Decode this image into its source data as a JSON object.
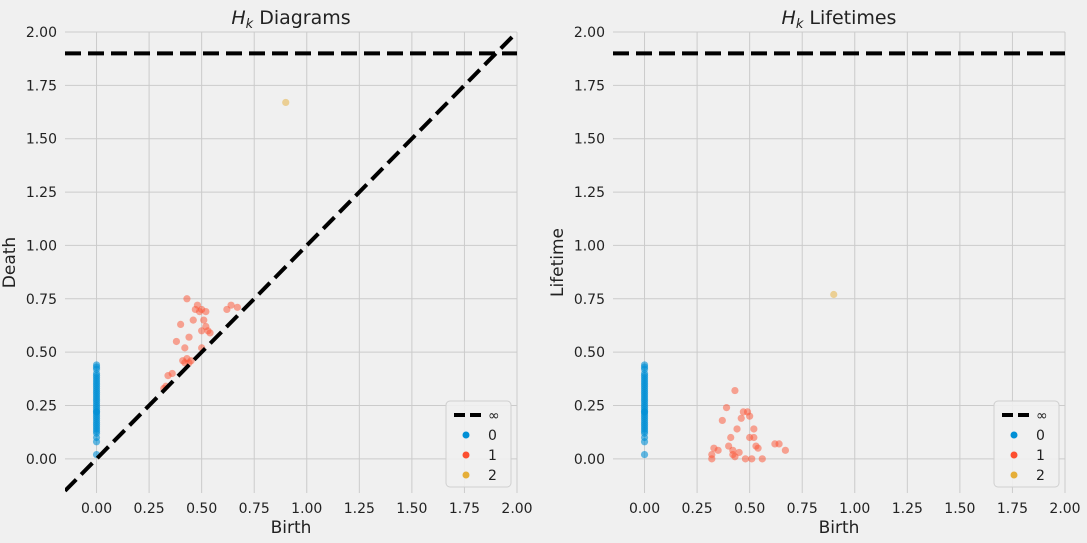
{
  "chart_data": [
    {
      "type": "scatter",
      "title_symbol": "H",
      "title_subscript": "k",
      "title_text": "Diagrams",
      "xlabel": "Birth",
      "ylabel": "Death",
      "xlim": [
        -0.15,
        2.0
      ],
      "ylim": [
        -0.16,
        2.0
      ],
      "xticks": [
        0.0,
        0.25,
        0.5,
        0.75,
        1.0,
        1.25,
        1.5,
        1.75,
        2.0
      ],
      "xtick_labels": [
        "0.00",
        "0.25",
        "0.50",
        "0.75",
        "1.00",
        "1.25",
        "1.50",
        "1.75",
        "2.00"
      ],
      "yticks": [
        0.0,
        0.25,
        0.5,
        0.75,
        1.0,
        1.25,
        1.5,
        1.75,
        2.0
      ],
      "ytick_labels": [
        "0.00",
        "0.25",
        "0.50",
        "0.75",
        "1.00",
        "1.25",
        "1.50",
        "1.75",
        "2.00"
      ],
      "grid": true,
      "infinity_line": 1.9,
      "diagonal": true,
      "legend_position": "bottom-right",
      "legend": [
        {
          "label": "∞",
          "kind": "dashed-line",
          "color": "#000000"
        },
        {
          "label": "0",
          "kind": "dot",
          "color": "#008fd5"
        },
        {
          "label": "1",
          "kind": "dot",
          "color": "#fc4f30"
        },
        {
          "label": "2",
          "kind": "dot",
          "color": "#e5ae38"
        }
      ],
      "series": [
        {
          "name": "0",
          "color": "#008fd5",
          "x": [
            0,
            0,
            0,
            0,
            0,
            0,
            0,
            0,
            0,
            0,
            0,
            0,
            0,
            0,
            0,
            0,
            0,
            0,
            0,
            0,
            0,
            0,
            0,
            0,
            0,
            0,
            0,
            0,
            0,
            0,
            0,
            0,
            0,
            0,
            0,
            0
          ],
          "y": [
            0.02,
            0.08,
            0.1,
            0.12,
            0.14,
            0.15,
            0.17,
            0.18,
            0.19,
            0.2,
            0.21,
            0.22,
            0.23,
            0.24,
            0.25,
            0.26,
            0.27,
            0.28,
            0.29,
            0.3,
            0.31,
            0.32,
            0.33,
            0.34,
            0.35,
            0.36,
            0.37,
            0.38,
            0.39,
            0.4,
            0.42,
            0.43,
            0.44,
            0.13,
            0.16,
            0.22
          ]
        },
        {
          "name": "1",
          "color": "#fc4f30",
          "x": [
            0.32,
            0.33,
            0.34,
            0.36,
            0.38,
            0.4,
            0.41,
            0.42,
            0.43,
            0.43,
            0.44,
            0.45,
            0.46,
            0.47,
            0.48,
            0.49,
            0.5,
            0.5,
            0.51,
            0.52,
            0.52,
            0.53,
            0.54,
            0.5,
            0.62,
            0.64,
            0.67,
            0.44,
            0.42
          ],
          "y": [
            0.33,
            0.34,
            0.39,
            0.4,
            0.55,
            0.63,
            0.46,
            0.52,
            0.47,
            0.75,
            0.45,
            0.46,
            0.65,
            0.7,
            0.72,
            0.69,
            0.6,
            0.7,
            0.65,
            0.69,
            0.62,
            0.6,
            0.59,
            0.52,
            0.7,
            0.72,
            0.71,
            0.57,
            0.45
          ]
        },
        {
          "name": "2",
          "color": "#e5ae38",
          "x": [
            0.9
          ],
          "y": [
            1.67
          ]
        }
      ]
    },
    {
      "type": "scatter",
      "title_symbol": "H",
      "title_subscript": "k",
      "title_text": "Lifetimes",
      "xlabel": "Birth",
      "ylabel": "Lifetime",
      "xlim": [
        -0.15,
        2.0
      ],
      "ylim": [
        -0.16,
        2.0
      ],
      "xticks": [
        0.0,
        0.25,
        0.5,
        0.75,
        1.0,
        1.25,
        1.5,
        1.75,
        2.0
      ],
      "xtick_labels": [
        "0.00",
        "0.25",
        "0.50",
        "0.75",
        "1.00",
        "1.25",
        "1.50",
        "1.75",
        "2.00"
      ],
      "yticks": [
        0.0,
        0.25,
        0.5,
        0.75,
        1.0,
        1.25,
        1.5,
        1.75,
        2.0
      ],
      "ytick_labels": [
        "0.00",
        "0.25",
        "0.50",
        "0.75",
        "1.00",
        "1.25",
        "1.50",
        "1.75",
        "2.00"
      ],
      "grid": true,
      "infinity_line": 1.9,
      "diagonal": false,
      "legend_position": "bottom-right",
      "legend": [
        {
          "label": "∞",
          "kind": "dashed-line",
          "color": "#000000"
        },
        {
          "label": "0",
          "kind": "dot",
          "color": "#008fd5"
        },
        {
          "label": "1",
          "kind": "dot",
          "color": "#fc4f30"
        },
        {
          "label": "2",
          "kind": "dot",
          "color": "#e5ae38"
        }
      ],
      "series": [
        {
          "name": "0",
          "color": "#008fd5",
          "x": [
            0,
            0,
            0,
            0,
            0,
            0,
            0,
            0,
            0,
            0,
            0,
            0,
            0,
            0,
            0,
            0,
            0,
            0,
            0,
            0,
            0,
            0,
            0,
            0,
            0,
            0,
            0,
            0,
            0,
            0,
            0,
            0,
            0,
            0,
            0,
            0
          ],
          "y": [
            0.02,
            0.08,
            0.1,
            0.12,
            0.14,
            0.15,
            0.17,
            0.18,
            0.19,
            0.2,
            0.21,
            0.22,
            0.23,
            0.24,
            0.25,
            0.26,
            0.27,
            0.28,
            0.29,
            0.3,
            0.31,
            0.32,
            0.33,
            0.34,
            0.35,
            0.36,
            0.37,
            0.38,
            0.39,
            0.4,
            0.42,
            0.43,
            0.44,
            0.13,
            0.16,
            0.22
          ]
        },
        {
          "name": "1",
          "color": "#fc4f30",
          "x": [
            0.32,
            0.32,
            0.33,
            0.35,
            0.37,
            0.39,
            0.4,
            0.41,
            0.42,
            0.42,
            0.43,
            0.43,
            0.44,
            0.45,
            0.46,
            0.47,
            0.48,
            0.49,
            0.5,
            0.5,
            0.51,
            0.52,
            0.52,
            0.53,
            0.54,
            0.56,
            0.62,
            0.64,
            0.67
          ],
          "y": [
            0.0,
            0.02,
            0.05,
            0.04,
            0.18,
            0.24,
            0.06,
            0.1,
            0.02,
            0.04,
            0.32,
            0.01,
            0.14,
            0.03,
            0.19,
            0.22,
            0.0,
            0.22,
            0.1,
            0.2,
            0.0,
            0.14,
            0.1,
            0.06,
            0.05,
            0.0,
            0.07,
            0.07,
            0.04
          ]
        },
        {
          "name": "2",
          "color": "#e5ae38",
          "x": [
            0.9
          ],
          "y": [
            0.77
          ]
        }
      ]
    }
  ]
}
